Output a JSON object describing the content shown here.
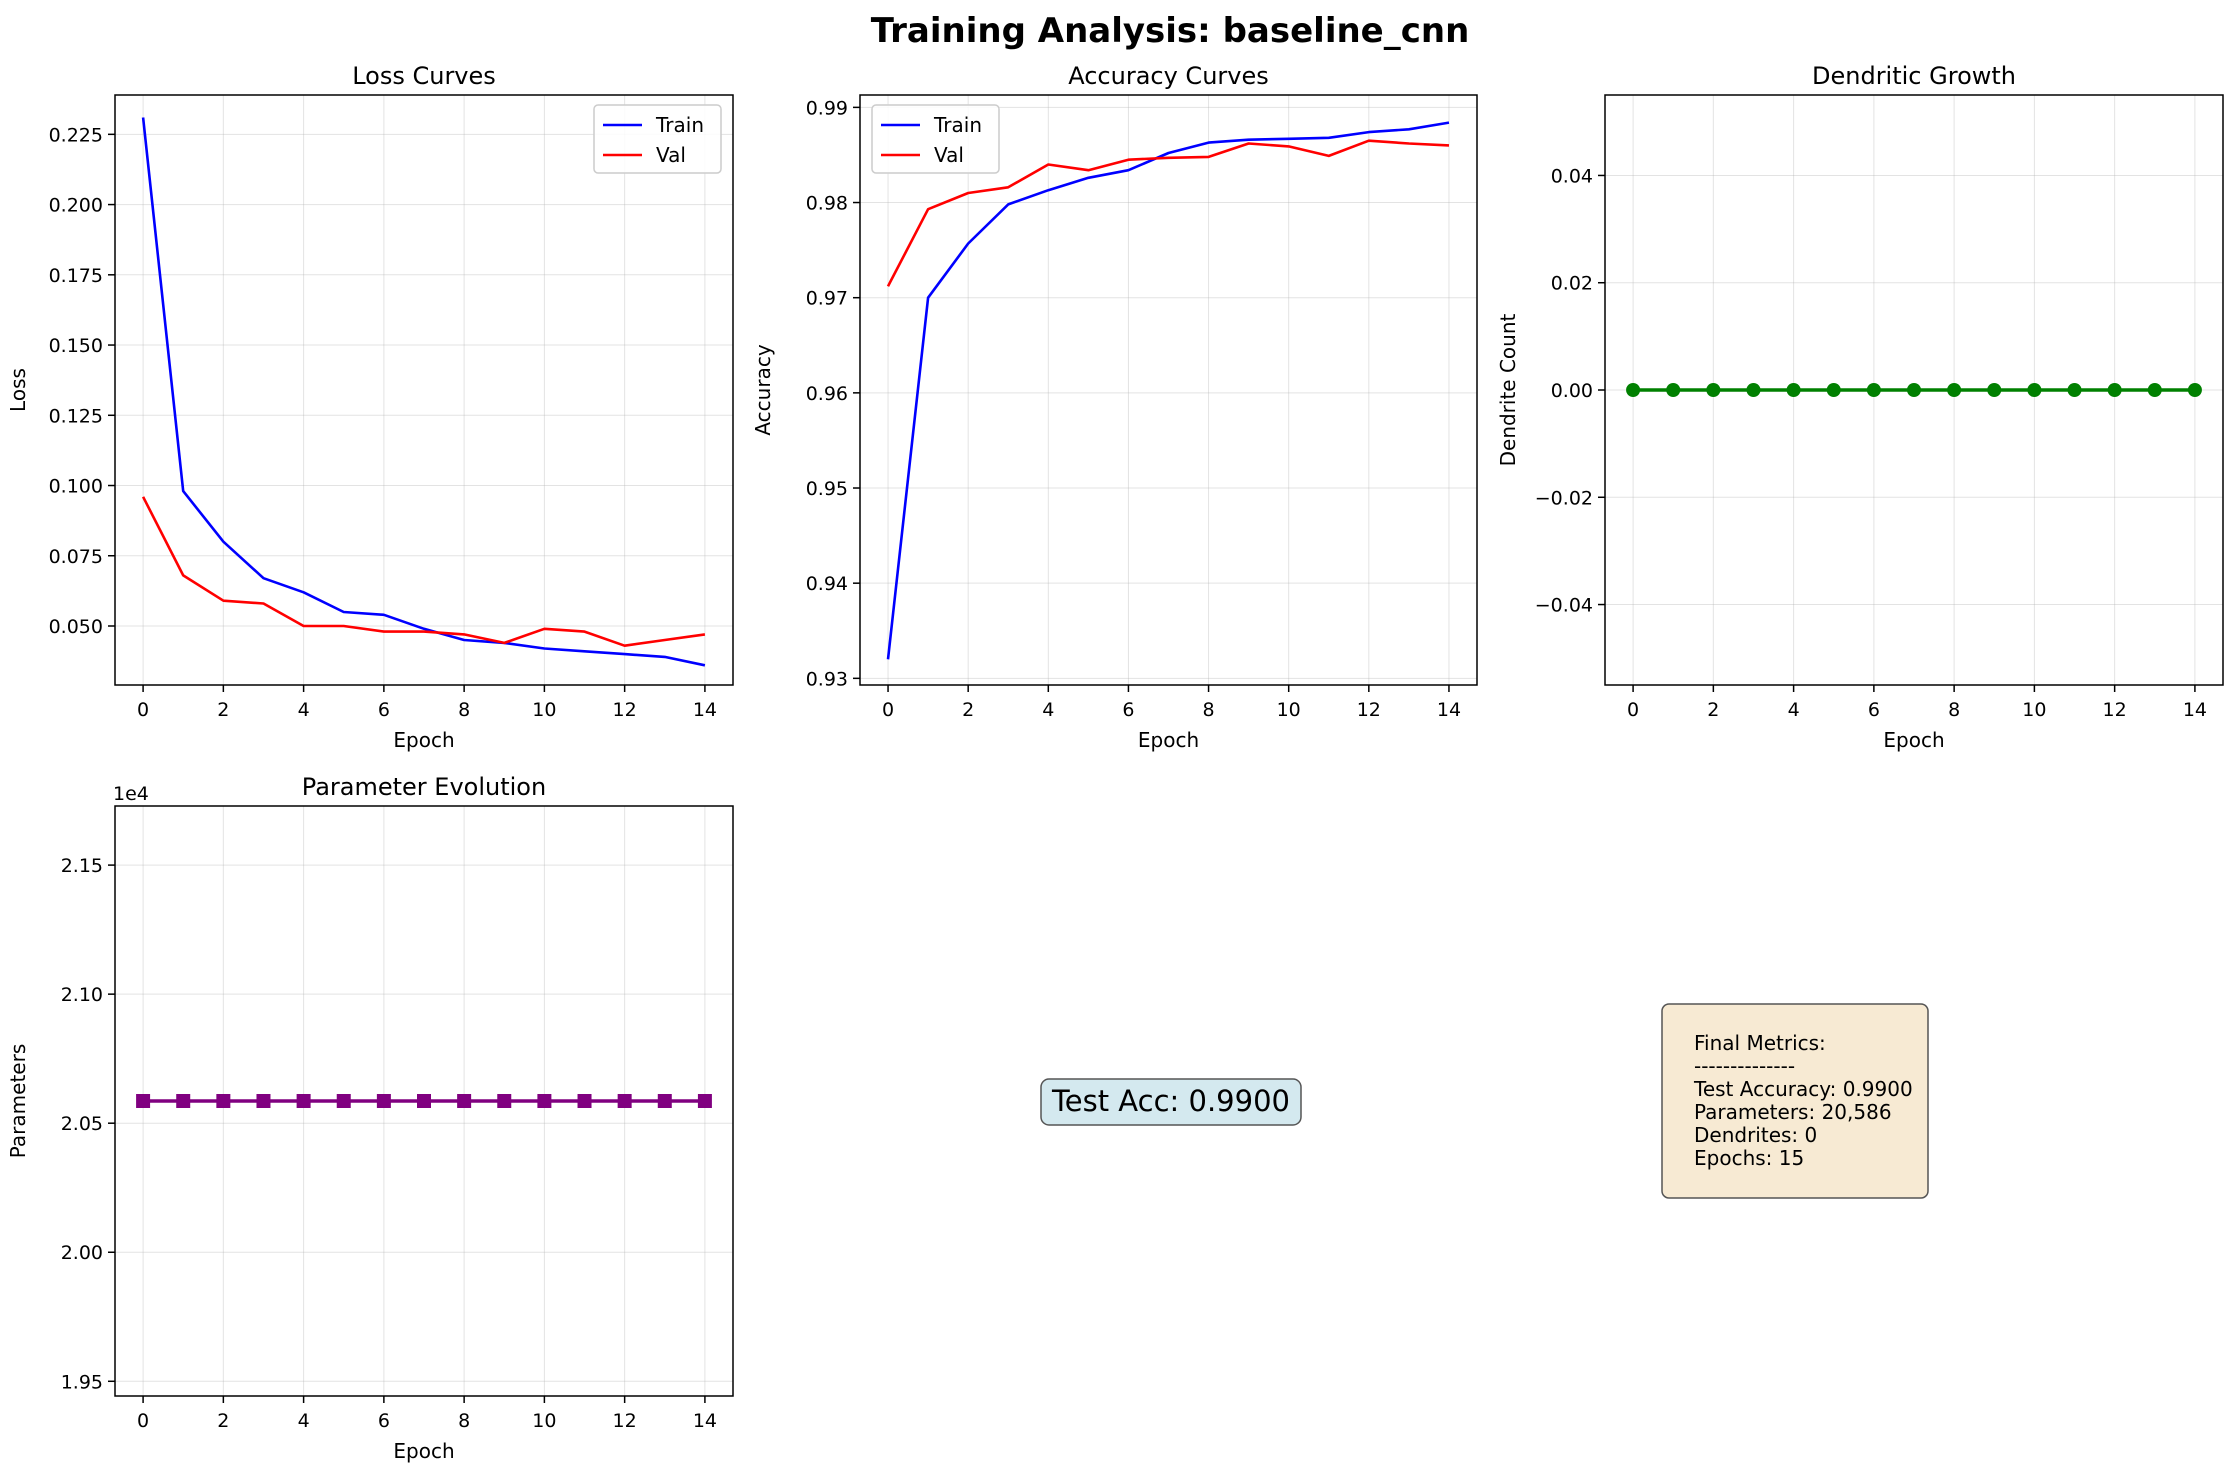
{
  "figure": {
    "title": "Training Analysis: baseline_cnn"
  },
  "chart_data": [
    {
      "id": "loss",
      "type": "line",
      "title": "Loss Curves",
      "xlabel": "Epoch",
      "ylabel": "Loss",
      "xlim": [
        -0.7,
        14.7
      ],
      "ylim": [
        0.029,
        0.239
      ],
      "xticks": [
        0,
        2,
        4,
        6,
        8,
        10,
        12,
        14
      ],
      "yticks": [
        0.05,
        0.075,
        0.1,
        0.125,
        0.15,
        0.175,
        0.2,
        0.225
      ],
      "ytick_labels": [
        "0.050",
        "0.075",
        "0.100",
        "0.125",
        "0.150",
        "0.175",
        "0.200",
        "0.225"
      ],
      "grid": true,
      "legend": "top-right",
      "x": [
        0,
        1,
        2,
        3,
        4,
        5,
        6,
        7,
        8,
        9,
        10,
        11,
        12,
        13,
        14
      ],
      "series": [
        {
          "name": "Train",
          "color": "#0000ff",
          "values": [
            0.231,
            0.098,
            0.08,
            0.067,
            0.062,
            0.055,
            0.054,
            0.049,
            0.045,
            0.044,
            0.042,
            0.041,
            0.04,
            0.039,
            0.036
          ]
        },
        {
          "name": "Val",
          "color": "#ff0000",
          "values": [
            0.096,
            0.068,
            0.059,
            0.058,
            0.05,
            0.05,
            0.048,
            0.048,
            0.047,
            0.044,
            0.049,
            0.048,
            0.043,
            0.045,
            0.047
          ]
        }
      ]
    },
    {
      "id": "accuracy",
      "type": "line",
      "title": "Accuracy Curves",
      "xlabel": "Epoch",
      "ylabel": "Accuracy",
      "xlim": [
        -0.7,
        14.7
      ],
      "ylim": [
        0.9293,
        0.9913
      ],
      "xticks": [
        0,
        2,
        4,
        6,
        8,
        10,
        12,
        14
      ],
      "yticks": [
        0.93,
        0.94,
        0.95,
        0.96,
        0.97,
        0.98,
        0.99
      ],
      "ytick_labels": [
        "0.93",
        "0.94",
        "0.95",
        "0.96",
        "0.97",
        "0.98",
        "0.99"
      ],
      "grid": true,
      "legend": "top-left",
      "x": [
        0,
        1,
        2,
        3,
        4,
        5,
        6,
        7,
        8,
        9,
        10,
        11,
        12,
        13,
        14
      ],
      "series": [
        {
          "name": "Train",
          "color": "#0000ff",
          "values": [
            0.932,
            0.97,
            0.9757,
            0.9798,
            0.9813,
            0.9826,
            0.9834,
            0.9852,
            0.9863,
            0.9866,
            0.9867,
            0.9868,
            0.9874,
            0.9877,
            0.9884
          ]
        },
        {
          "name": "Val",
          "color": "#ff0000",
          "values": [
            0.9712,
            0.9793,
            0.981,
            0.9816,
            0.984,
            0.9834,
            0.9845,
            0.9847,
            0.9848,
            0.9862,
            0.9859,
            0.9849,
            0.9865,
            0.9862,
            0.986
          ]
        }
      ]
    },
    {
      "id": "dendrites",
      "type": "line",
      "title": "Dendritic Growth",
      "xlabel": "Epoch",
      "ylabel": "Dendrite Count",
      "xlim": [
        -0.7,
        14.7
      ],
      "ylim": [
        -0.055,
        0.055
      ],
      "xticks": [
        0,
        2,
        4,
        6,
        8,
        10,
        12,
        14
      ],
      "yticks": [
        -0.04,
        -0.02,
        0.0,
        0.02,
        0.04
      ],
      "ytick_labels": [
        "−0.04",
        "−0.02",
        "0.00",
        "0.02",
        "0.04"
      ],
      "grid": true,
      "x": [
        0,
        1,
        2,
        3,
        4,
        5,
        6,
        7,
        8,
        9,
        10,
        11,
        12,
        13,
        14
      ],
      "series": [
        {
          "color": "#008000",
          "marker": "circle",
          "values": [
            0,
            0,
            0,
            0,
            0,
            0,
            0,
            0,
            0,
            0,
            0,
            0,
            0,
            0,
            0
          ]
        }
      ]
    },
    {
      "id": "params",
      "type": "line",
      "title": "Parameter Evolution",
      "xlabel": "Epoch",
      "ylabel": "Parameters",
      "offset_label": "1e4",
      "xlim": [
        -0.7,
        14.7
      ],
      "ylim": [
        19443,
        21729
      ],
      "xticks": [
        0,
        2,
        4,
        6,
        8,
        10,
        12,
        14
      ],
      "yticks": [
        19500,
        20000,
        20500,
        21000,
        21500
      ],
      "ytick_labels": [
        "1.95",
        "2.00",
        "2.05",
        "2.10",
        "2.15"
      ],
      "grid": true,
      "x": [
        0,
        1,
        2,
        3,
        4,
        5,
        6,
        7,
        8,
        9,
        10,
        11,
        12,
        13,
        14
      ],
      "series": [
        {
          "color": "#800080",
          "marker": "square",
          "values": [
            20586,
            20586,
            20586,
            20586,
            20586,
            20586,
            20586,
            20586,
            20586,
            20586,
            20586,
            20586,
            20586,
            20586,
            20586
          ]
        }
      ]
    }
  ],
  "test_acc_box": {
    "text": "Test Acc: 0.9900",
    "bg_color": "#d4e9ef"
  },
  "final_metrics": {
    "bg_color": "#f7ead3",
    "lines": [
      "Final Metrics:",
      "--------------",
      "Test Accuracy: 0.9900",
      "Parameters: 20,586",
      "Dendrites: 0",
      "Epochs: 15"
    ]
  }
}
